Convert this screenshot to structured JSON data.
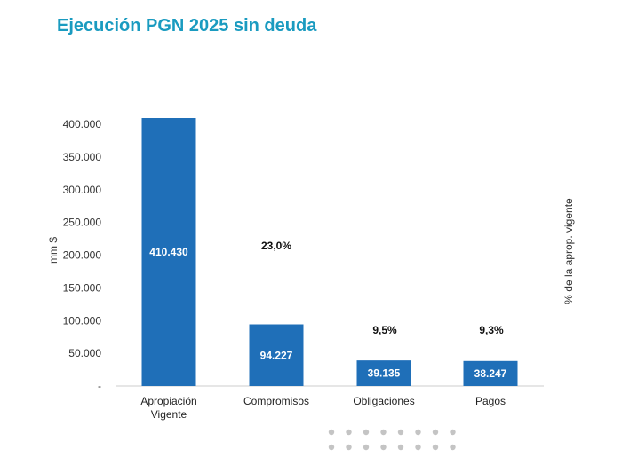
{
  "chart_data": {
    "type": "bar",
    "title": "Ejecución PGN 2025 sin deuda",
    "ylabel": "mm $",
    "y2label": "% de la aprop. vigente",
    "categories": [
      "Apropiación\nVigente",
      "Compromisos",
      "Obligaciones",
      "Pagos"
    ],
    "values": [
      410430,
      94227,
      39135,
      38247
    ],
    "value_labels": [
      "410.430",
      "94.227",
      "39.135",
      "38.247"
    ],
    "percent_labels": [
      "",
      "23,0%",
      "9,5%",
      "9,3%"
    ],
    "percent_values": [
      null,
      23.0,
      9.5,
      9.3
    ],
    "ylim": [
      0,
      400000
    ],
    "yticks": [
      {
        "value": 0,
        "label": "-"
      },
      {
        "value": 50000,
        "label": "50.000"
      },
      {
        "value": 100000,
        "label": "100.000"
      },
      {
        "value": 150000,
        "label": "150.000"
      },
      {
        "value": 200000,
        "label": "200.000"
      },
      {
        "value": 250000,
        "label": "250.000"
      },
      {
        "value": 300000,
        "label": "300.000"
      },
      {
        "value": 350000,
        "label": "350.000"
      },
      {
        "value": 400000,
        "label": "400.000"
      }
    ],
    "bar_color": "#1f6fb8",
    "grid": false
  },
  "colors": {
    "title": "#1a9bc0",
    "bar": "#1f6fb8",
    "axis": "#cccccc",
    "dots": "#c4c4c4"
  }
}
